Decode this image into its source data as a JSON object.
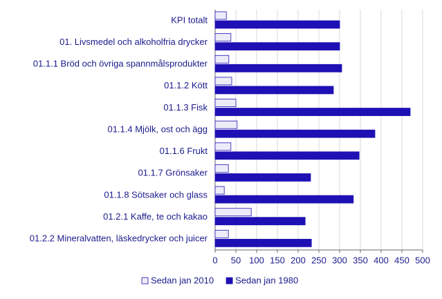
{
  "chart_data": {
    "type": "hbar",
    "categories": [
      "KPI totalt",
      "01. Livsmedel och alkoholfria drycker",
      "01.1.1 Bröd och övriga spannmålsprodukter",
      "01.1.2 Kött",
      "01.1.3 Fisk",
      "01.1.4 Mjölk, ost och ägg",
      "01.1.6 Frukt",
      "01.1.7 Grönsaker",
      "01.1.8 Sötsaker och glass",
      "01.2.1 Kaffe, te och kakao",
      "01.2.2 Mineralvatten, läskedrycker och juicer"
    ],
    "series": [
      {
        "name": "Sedan jan 2010",
        "color": "#ececf8",
        "values": [
          27,
          38,
          33,
          40,
          50,
          53,
          38,
          32,
          22,
          87,
          32
        ]
      },
      {
        "name": "Sedan jan 1980",
        "color": "#1e10b4",
        "values": [
          300,
          300,
          305,
          285,
          470,
          385,
          347,
          230,
          333,
          217,
          232
        ]
      }
    ],
    "xlim": [
      0,
      500
    ],
    "xticks": [
      0,
      50,
      100,
      150,
      200,
      250,
      300,
      350,
      400,
      450,
      500
    ],
    "grid": true
  }
}
